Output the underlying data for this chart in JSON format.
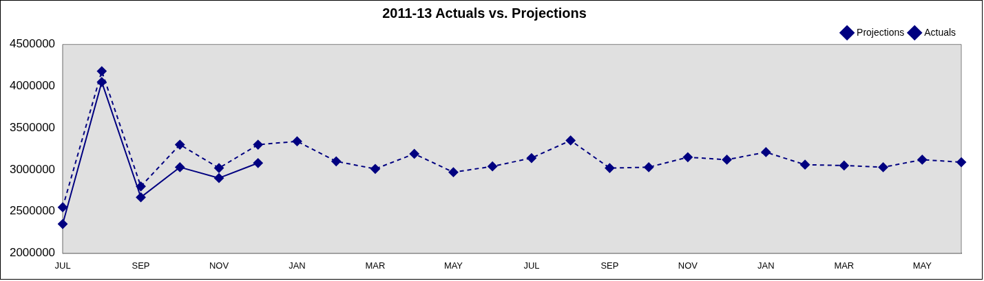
{
  "chart_data": {
    "type": "line",
    "title": "2011-13 Actuals vs. Projections",
    "categories": [
      "JUL",
      null,
      "SEP",
      null,
      "NOV",
      null,
      "JAN",
      null,
      "MAR",
      null,
      "MAY",
      null,
      "JUL",
      null,
      "SEP",
      null,
      "NOV",
      null,
      "JAN",
      null,
      "MAR",
      null,
      "MAY",
      null
    ],
    "series": [
      {
        "name": "Projections",
        "color": "#000080",
        "line_style": "dashed",
        "values": [
          2550000,
          4180000,
          2800000,
          3300000,
          3020000,
          3300000,
          3340000,
          3100000,
          3010000,
          3190000,
          2970000,
          3040000,
          3140000,
          3350000,
          3020000,
          3030000,
          3150000,
          3120000,
          3210000,
          3060000,
          3050000,
          3030000,
          3120000,
          3090000
        ]
      },
      {
        "name": "Actuals",
        "color": "#000080",
        "line_style": "solid",
        "values": [
          2350000,
          4050000,
          2670000,
          3030000,
          2900000,
          3080000,
          null,
          null,
          null,
          null,
          null,
          null,
          null,
          null,
          null,
          null,
          null,
          null,
          null,
          null,
          null,
          null,
          null,
          null
        ]
      }
    ],
    "ylim": [
      2000000,
      4500000
    ],
    "yticks": [
      2000000,
      2500000,
      3000000,
      3500000,
      4000000,
      4500000
    ],
    "grid": false,
    "legend": "top right",
    "marker": "diamond"
  }
}
